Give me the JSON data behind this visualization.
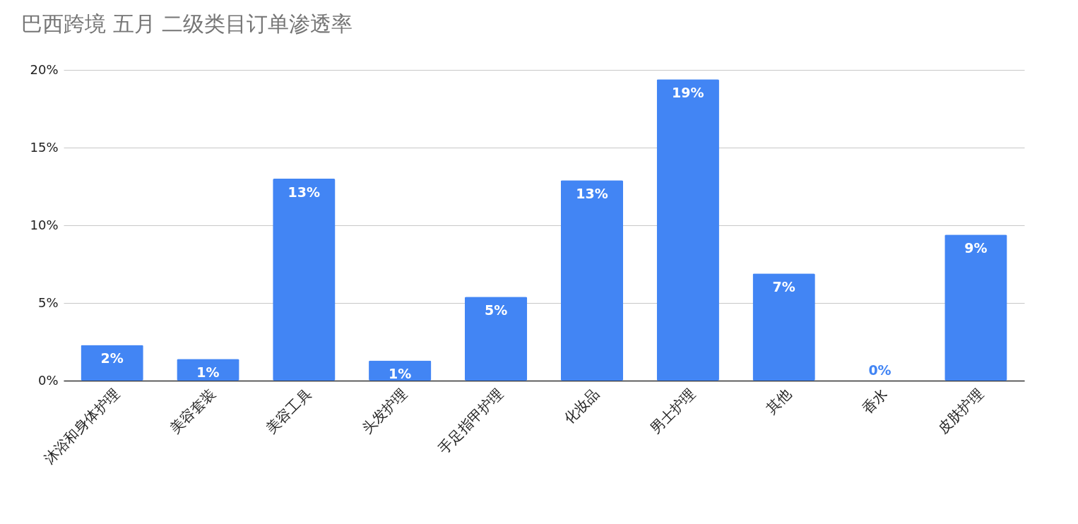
{
  "chart_data": {
    "type": "bar",
    "title": "巴西跨境 五月 二级类目订单渗透率",
    "categories": [
      "沐浴和身体护理",
      "美容套装",
      "美容工具",
      "头发护理",
      "手足指甲护理",
      "化妆品",
      "男士护理",
      "其他",
      "香水",
      "皮肤护理"
    ],
    "values": [
      2.3,
      1.4,
      13.0,
      1.3,
      5.4,
      12.9,
      19.4,
      6.9,
      0,
      9.4
    ],
    "value_labels": [
      "2%",
      "1%",
      "13%",
      "1%",
      "5%",
      "13%",
      "19%",
      "7%",
      "0%",
      "9%"
    ],
    "color": "#4285f4",
    "ylim": [
      0,
      20
    ],
    "yticks": [
      {
        "value": 0,
        "label": "0%"
      },
      {
        "value": 5,
        "label": "5%"
      },
      {
        "value": 10,
        "label": "10%"
      },
      {
        "value": 15,
        "label": "15%"
      },
      {
        "value": 20,
        "label": "20%"
      }
    ],
    "grid": "y"
  }
}
